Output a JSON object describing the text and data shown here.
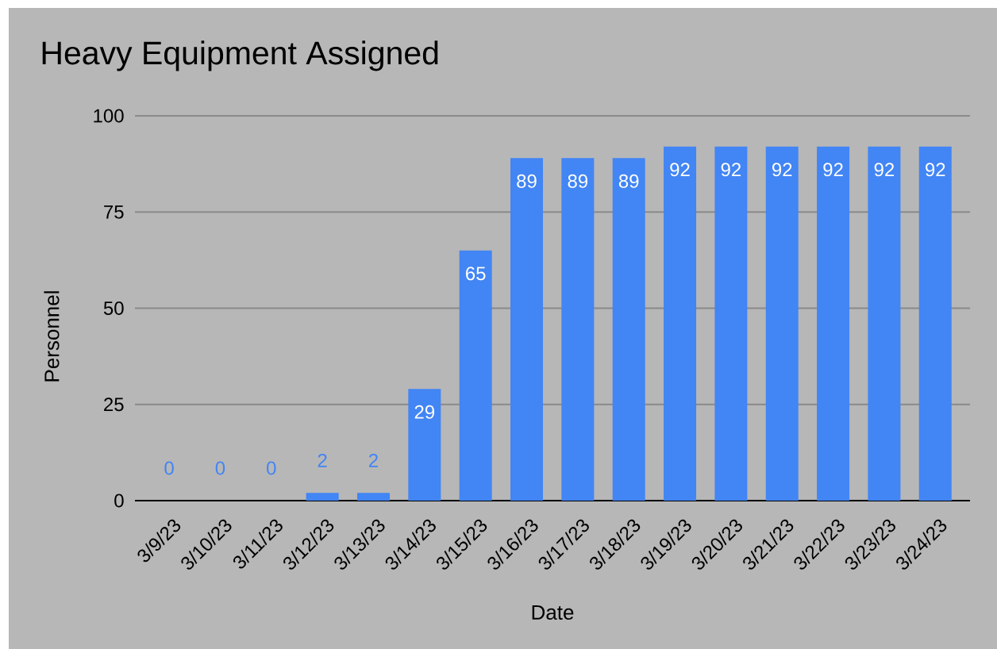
{
  "chart_data": {
    "type": "bar",
    "title": "Heavy Equipment Assigned",
    "xlabel": "Date",
    "ylabel": "Personnel",
    "categories": [
      "3/9/23",
      "3/10/23",
      "3/11/23",
      "3/12/23",
      "3/13/23",
      "3/14/23",
      "3/15/23",
      "3/16/23",
      "3/17/23",
      "3/18/23",
      "3/19/23",
      "3/20/23",
      "3/21/23",
      "3/22/23",
      "3/23/23",
      "3/24/23"
    ],
    "values": [
      0,
      0,
      0,
      2,
      2,
      29,
      65,
      89,
      89,
      89,
      92,
      92,
      92,
      92,
      92,
      92
    ],
    "color": "#4285f4",
    "ylim": [
      0,
      100
    ],
    "yticks": [
      0,
      25,
      50,
      75,
      100
    ],
    "grid": "y",
    "data_labels": true
  }
}
